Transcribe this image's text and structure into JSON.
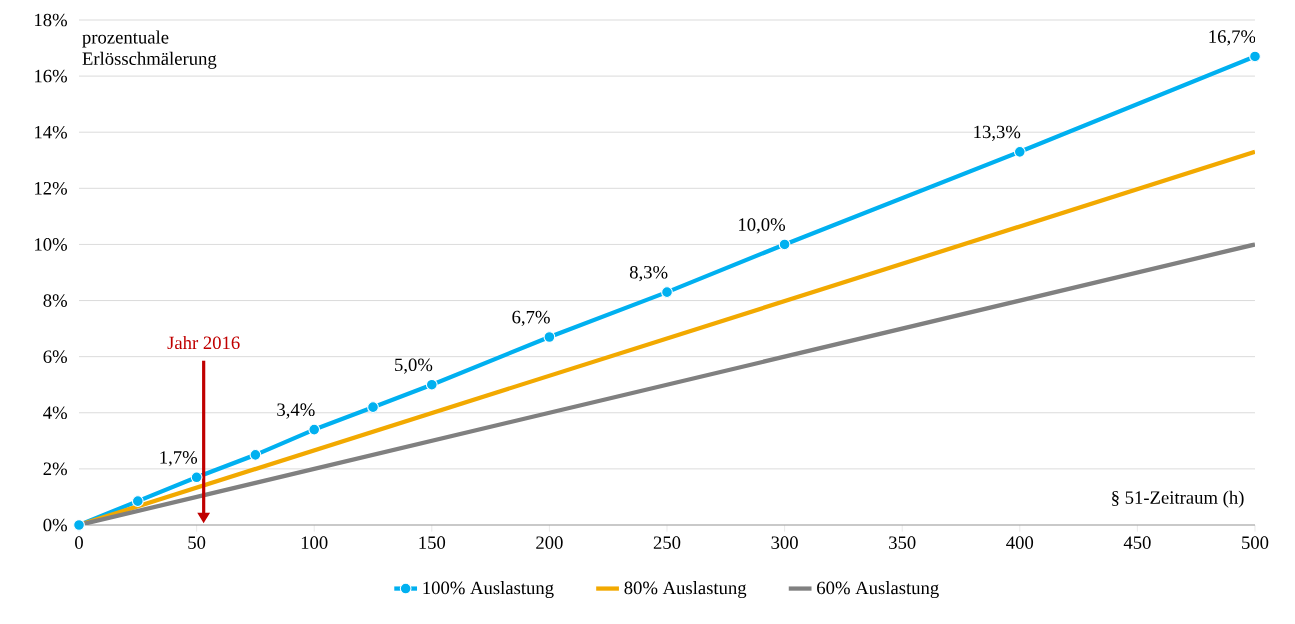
{
  "chart_data": {
    "type": "line",
    "ylabel": "prozentuale Erlösschmälerung",
    "xlabel": "§ 51-Zeitraum (h)",
    "xlim": [
      0,
      500
    ],
    "xticks": [
      0,
      50,
      100,
      150,
      200,
      250,
      300,
      350,
      400,
      450,
      500
    ],
    "ylim": [
      0,
      18
    ],
    "yticks": [
      {
        "value": 0,
        "label": "0%"
      },
      {
        "value": 2,
        "label": "2%"
      },
      {
        "value": 4,
        "label": "4%"
      },
      {
        "value": 6,
        "label": "6%"
      },
      {
        "value": 8,
        "label": "8%"
      },
      {
        "value": 10,
        "label": "10%"
      },
      {
        "value": 12,
        "label": "12%"
      },
      {
        "value": 14,
        "label": "14%"
      },
      {
        "value": 16,
        "label": "16%"
      },
      {
        "value": 18,
        "label": "18%"
      }
    ],
    "grid": "y",
    "legend": "bottom",
    "series": [
      {
        "name": "100% Auslastung",
        "color": "#00b0f0",
        "marker": "circle",
        "x": [
          0,
          25,
          50,
          75,
          100,
          125,
          150,
          200,
          250,
          300,
          400,
          500
        ],
        "values": [
          0,
          0.85,
          1.7,
          2.5,
          3.4,
          4.2,
          5.0,
          6.7,
          8.3,
          10.0,
          13.3,
          16.7
        ],
        "value_labels": [
          null,
          null,
          "1,7%",
          null,
          "3,4%",
          null,
          "5,0%",
          "6,7%",
          "8,3%",
          "10,0%",
          "13,3%",
          "16,7%"
        ]
      },
      {
        "name": "80% Auslastung",
        "color": "#f2a900",
        "marker": "none",
        "x": [
          0,
          500
        ],
        "values": [
          0,
          13.3
        ]
      },
      {
        "name": "60% Auslastung",
        "color": "#808080",
        "marker": "none",
        "x": [
          0,
          500
        ],
        "values": [
          0,
          10.0
        ]
      }
    ],
    "ref_lines": [
      {
        "axis": "x",
        "value": 53,
        "label": "Jahr 2016",
        "color": "#c00000"
      }
    ]
  }
}
